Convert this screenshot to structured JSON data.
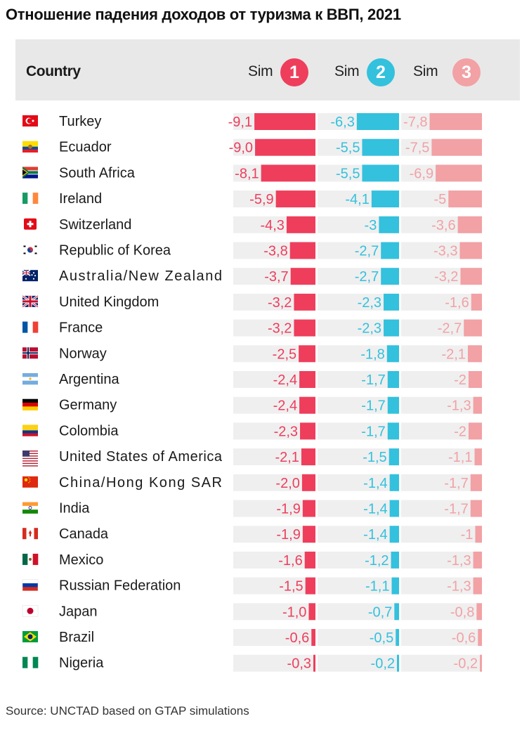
{
  "title": "Отношение падения доходов от туризма к ВВП, 2021",
  "header": {
    "country": "Country",
    "sim_label": "Sim"
  },
  "source": "Source: UNCTAD based on GTAP simulations",
  "colors": {
    "sim1": "#ee3e5c",
    "sim2": "#33c1dd",
    "sim3": "#f2a1a5",
    "track": "#efefef",
    "header_bg": "#e8e8e8"
  },
  "chart_data": {
    "type": "bar",
    "orientation": "horizontal",
    "categories": [
      "Turkey",
      "Ecuador",
      "South Africa",
      "Ireland",
      "Switzerland",
      "Republic of Korea",
      "Australia/New Zealand",
      "United Kingdom",
      "France",
      "Norway",
      "Argentina",
      "Germany",
      "Colombia",
      "United States of America",
      "China/Hong Kong SAR",
      "India",
      "Canada",
      "Mexico",
      "Russian Federation",
      "Japan",
      "Brazil",
      "Nigeria"
    ],
    "flags": [
      "turkey-flag-icon",
      "ecuador-flag-icon",
      "south-africa-flag-icon",
      "ireland-flag-icon",
      "switzerland-flag-icon",
      "korea-flag-icon",
      "australia-flag-icon",
      "uk-flag-icon",
      "france-flag-icon",
      "norway-flag-icon",
      "argentina-flag-icon",
      "germany-flag-icon",
      "colombia-flag-icon",
      "usa-flag-icon",
      "china-flag-icon",
      "india-flag-icon",
      "canada-flag-icon",
      "mexico-flag-icon",
      "russia-flag-icon",
      "japan-flag-icon",
      "brazil-flag-icon",
      "nigeria-flag-icon"
    ],
    "series": [
      {
        "id": "1",
        "values": [
          -9.1,
          -9.0,
          -8.1,
          -5.9,
          -4.3,
          -3.8,
          -3.7,
          -3.2,
          -3.2,
          -2.5,
          -2.4,
          -2.4,
          -2.3,
          -2.1,
          -2.0,
          -1.9,
          -1.9,
          -1.6,
          -1.5,
          -1.0,
          -0.6,
          -0.3
        ],
        "labels": [
          "-9,1",
          "-9,0",
          "-8,1",
          "-5,9",
          "-4,3",
          "-3,8",
          "-3,7",
          "-3,2",
          "-3,2",
          "-2,5",
          "-2,4",
          "-2,4",
          "-2,3",
          "-2,1",
          "-2,0",
          "-1,9",
          "-1,9",
          "-1,6",
          "-1,5",
          "-1,0",
          "-0,6",
          "-0,3"
        ]
      },
      {
        "id": "2",
        "values": [
          -6.3,
          -5.5,
          -5.5,
          -4.1,
          -3,
          -2.7,
          -2.7,
          -2.3,
          -2.3,
          -1.8,
          -1.7,
          -1.7,
          -1.7,
          -1.5,
          -1.4,
          -1.4,
          -1.4,
          -1.2,
          -1.1,
          -0.7,
          -0.5,
          -0.2
        ],
        "labels": [
          "-6,3",
          "-5,5",
          "-5,5",
          "-4,1",
          "-3",
          "-2,7",
          "-2,7",
          "-2,3",
          "-2,3",
          "-1,8",
          "-1,7",
          "-1,7",
          "-1,7",
          "-1,5",
          "-1,4",
          "-1,4",
          "-1,4",
          "-1,2",
          "-1,1",
          "-0,7",
          "-0,5",
          "-0,2"
        ]
      },
      {
        "id": "3",
        "values": [
          -7.8,
          -7.5,
          -6.9,
          -5,
          -3.6,
          -3.3,
          -3.2,
          -1.6,
          -2.7,
          -2.1,
          -2,
          -1.3,
          -2,
          -1.1,
          -1.7,
          -1.7,
          -1,
          -1.3,
          -1.3,
          -0.8,
          -0.6,
          -0.2
        ],
        "labels": [
          "-7,8",
          "-7,5",
          "-6,9",
          "-5",
          "-3,6",
          "-3,3",
          "-3,2",
          "-1,6",
          "-2,7",
          "-2,1",
          "-2",
          "-1,3",
          "-2",
          "-1,1",
          "-1,7",
          "-1,7",
          "-1",
          "-1,3",
          "-1,3",
          "-0,8",
          "-0,6",
          "-0,2"
        ]
      }
    ]
  }
}
